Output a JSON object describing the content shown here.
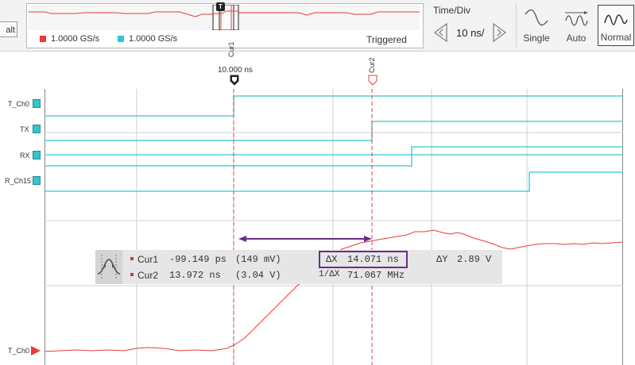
{
  "toolbar": {
    "cut_button_label": "alt",
    "overview": {
      "legend": [
        {
          "label": "1.0000 GS/s",
          "color": "#e83b3b"
        },
        {
          "label": "1.0000 GS/s",
          "color": "#33c6cf"
        }
      ],
      "status": "Triggered",
      "trigger_marker": "T"
    },
    "time_div": {
      "label": "Time/Div",
      "value": "10 ns/",
      "decrease_icon": "arrow-left-icon",
      "increase_icon": "arrow-right-icon"
    },
    "modes": [
      {
        "label": "Single",
        "icon": "single-wave-icon"
      },
      {
        "label": "Auto",
        "icon": "auto-wave-icon"
      },
      {
        "label": "Normal",
        "icon": "normal-wave-icon",
        "selected": true
      }
    ]
  },
  "plot": {
    "cursor1": {
      "label": "Cur1",
      "time_label": "10.000 ns"
    },
    "cursor2": {
      "label": "Cur2"
    },
    "channels": [
      {
        "label": "T_Ch0",
        "kind": "digital"
      },
      {
        "label": "TX",
        "kind": "digital"
      },
      {
        "label": "RX",
        "kind": "digital"
      },
      {
        "label": "R_Ch15",
        "kind": "digital"
      },
      {
        "label": "T_Ch0",
        "kind": "analog"
      }
    ],
    "colors": {
      "digital": "#33c6cf",
      "analog": "#e83b3b",
      "cursor": "#e04040",
      "annotation": "#6a2d91"
    }
  },
  "readout": {
    "cur1_name": "Cur1",
    "cur1_time": "-99.149 ps",
    "cur1_value": "(149 mV)",
    "cur2_name": "Cur2",
    "cur2_time": "13.972 ns",
    "cur2_value": "(3.04 V)",
    "dx_label": "ΔX",
    "dx_value": "14.071 ns",
    "inv_dx_label": "1/ΔX",
    "inv_dx_value": "71.067 MHz",
    "dy_label": "ΔY",
    "dy_value": "2.89 V"
  }
}
